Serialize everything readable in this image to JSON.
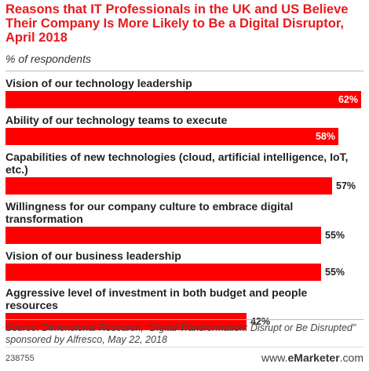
{
  "header": {
    "title": "Reasons that IT Professionals in the UK and US Believe Their Company Is More Likely to Be a Digital Disruptor, April 2018",
    "subtitle": "% of respondents"
  },
  "chart_data": {
    "type": "bar",
    "orientation": "horizontal",
    "categories": [
      "Vision of our technology leadership",
      "Ability of our technology teams to execute",
      "Capabilities of new technologies (cloud, artificial intelligence, IoT, etc.)",
      "Willingness for our company culture to embrace digital transformation",
      "Vision of our business leadership",
      "Aggressive level of investment in both budget and people resources"
    ],
    "values": [
      62,
      58,
      57,
      55,
      55,
      42
    ],
    "value_labels": [
      "62%",
      "58%",
      "57%",
      "55%",
      "55%",
      "42%"
    ],
    "bar_color": "#ff0000",
    "xlim": [
      0,
      62
    ],
    "grid": false,
    "legend": "none"
  },
  "footer": {
    "source": "Source: Dimensional Research, \"Digital Transformation: Disrupt or Be Disrupted\" sponsored by Alfresco, May 22, 2018",
    "chart_id": "238755",
    "brand_prefix": "www.",
    "brand_bold": "eMarketer",
    "brand_suffix": ".com"
  }
}
